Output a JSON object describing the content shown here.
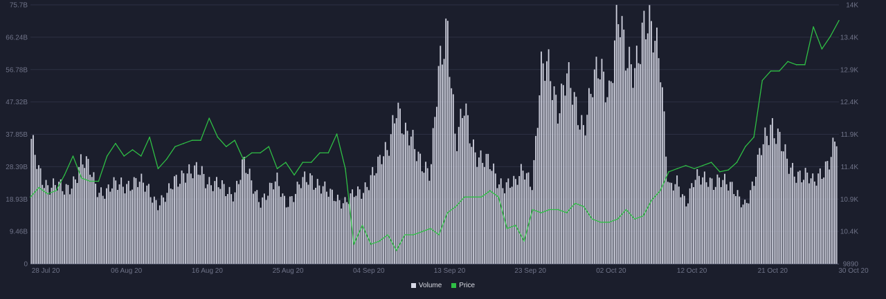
{
  "chart_data": {
    "type": "bar+line",
    "title": "",
    "x_ticks": [
      "28 Jul 20",
      "06 Aug 20",
      "16 Aug 20",
      "25 Aug 20",
      "04 Sep 20",
      "13 Sep 20",
      "23 Sep 20",
      "02 Oct 20",
      "12 Oct 20",
      "21 Oct 20",
      "30 Oct 20"
    ],
    "x_start_date": "2020-07-27",
    "x_end_date": "2020-10-30",
    "y_left": {
      "ticks": [
        "0",
        "9.46B",
        "18.93B",
        "28.39B",
        "37.85B",
        "47.32B",
        "56.78B",
        "66.24B",
        "75.7B"
      ],
      "min": 0,
      "max": 75.7,
      "unit": "B"
    },
    "y_right": {
      "ticks": [
        "9890",
        "10.4K",
        "10.9K",
        "11.4K",
        "11.9K",
        "12.4K",
        "12.9K",
        "13.4K",
        "14K"
      ],
      "min": 9890,
      "max": 14000
    },
    "series": [
      {
        "name": "Volume",
        "kind": "bar",
        "color": "#d7d9e6",
        "axis": "left",
        "points": [
          [
            "2020-07-27",
            35.5
          ],
          [
            "2020-07-28",
            27.0
          ],
          [
            "2020-07-29",
            23.5
          ],
          [
            "2020-07-30",
            22.5
          ],
          [
            "2020-07-31",
            21.0
          ],
          [
            "2020-08-01",
            24.5
          ],
          [
            "2020-08-02",
            29.5
          ],
          [
            "2020-08-03",
            27.0
          ],
          [
            "2020-08-04",
            22.0
          ],
          [
            "2020-08-05",
            21.0
          ],
          [
            "2020-08-06",
            22.5
          ],
          [
            "2020-08-07",
            24.0
          ],
          [
            "2020-08-08",
            23.5
          ],
          [
            "2020-08-09",
            23.0
          ],
          [
            "2020-08-10",
            22.0
          ],
          [
            "2020-08-11",
            17.5
          ],
          [
            "2020-08-12",
            19.0
          ],
          [
            "2020-08-13",
            25.0
          ],
          [
            "2020-08-14",
            27.0
          ],
          [
            "2020-08-15",
            25.5
          ],
          [
            "2020-08-16",
            27.5
          ],
          [
            "2020-08-17",
            24.5
          ],
          [
            "2020-08-18",
            22.5
          ],
          [
            "2020-08-19",
            21.0
          ],
          [
            "2020-08-20",
            21.5
          ],
          [
            "2020-08-21",
            29.0
          ],
          [
            "2020-08-22",
            23.0
          ],
          [
            "2020-08-23",
            19.0
          ],
          [
            "2020-08-24",
            21.0
          ],
          [
            "2020-08-25",
            23.5
          ],
          [
            "2020-08-26",
            18.5
          ],
          [
            "2020-08-27",
            20.0
          ],
          [
            "2020-08-28",
            23.5
          ],
          [
            "2020-08-29",
            26.0
          ],
          [
            "2020-08-30",
            23.0
          ],
          [
            "2020-08-31",
            20.0
          ],
          [
            "2020-09-01",
            19.5
          ],
          [
            "2020-09-02",
            18.5
          ],
          [
            "2020-09-03",
            19.5
          ],
          [
            "2020-09-04",
            21.0
          ],
          [
            "2020-09-05",
            26.5
          ],
          [
            "2020-09-06",
            28.5
          ],
          [
            "2020-09-07",
            33.0
          ],
          [
            "2020-09-08",
            49.0
          ],
          [
            "2020-09-09",
            36.5
          ],
          [
            "2020-09-10",
            35.0
          ],
          [
            "2020-09-11",
            31.0
          ],
          [
            "2020-09-12",
            25.5
          ],
          [
            "2020-09-13",
            55.0
          ],
          [
            "2020-09-14",
            73.5
          ],
          [
            "2020-09-15",
            34.0
          ],
          [
            "2020-09-16",
            44.5
          ],
          [
            "2020-09-17",
            35.5
          ],
          [
            "2020-09-18",
            30.5
          ],
          [
            "2020-09-19",
            28.0
          ],
          [
            "2020-09-20",
            24.5
          ],
          [
            "2020-09-21",
            23.5
          ],
          [
            "2020-09-22",
            22.5
          ],
          [
            "2020-09-23",
            28.5
          ],
          [
            "2020-09-24",
            24.0
          ],
          [
            "2020-09-25",
            54.0
          ],
          [
            "2020-09-26",
            58.0
          ],
          [
            "2020-09-27",
            46.5
          ],
          [
            "2020-09-28",
            53.0
          ],
          [
            "2020-09-29",
            46.5
          ],
          [
            "2020-09-30",
            41.5
          ],
          [
            "2020-10-01",
            50.5
          ],
          [
            "2020-10-02",
            56.0
          ],
          [
            "2020-10-03",
            52.0
          ],
          [
            "2020-10-04",
            72.0
          ],
          [
            "2020-10-05",
            57.5
          ],
          [
            "2020-10-06",
            60.0
          ],
          [
            "2020-10-07",
            68.5
          ],
          [
            "2020-10-08",
            65.5
          ],
          [
            "2020-10-09",
            63.0
          ],
          [
            "2020-10-10",
            22.0
          ],
          [
            "2020-10-11",
            22.5
          ],
          [
            "2020-10-12",
            18.0
          ],
          [
            "2020-10-13",
            26.0
          ],
          [
            "2020-10-14",
            23.5
          ],
          [
            "2020-10-15",
            24.0
          ],
          [
            "2020-10-16",
            26.0
          ],
          [
            "2020-10-17",
            22.0
          ],
          [
            "2020-10-18",
            20.5
          ],
          [
            "2020-10-19",
            18.0
          ],
          [
            "2020-10-20",
            22.5
          ],
          [
            "2020-10-21",
            35.0
          ],
          [
            "2020-10-22",
            42.5
          ],
          [
            "2020-10-23",
            35.5
          ],
          [
            "2020-10-24",
            28.5
          ],
          [
            "2020-10-25",
            27.5
          ],
          [
            "2020-10-26",
            25.5
          ],
          [
            "2020-10-27",
            23.0
          ],
          [
            "2020-10-28",
            28.0
          ],
          [
            "2020-10-29",
            31.0
          ],
          [
            "2020-10-30",
            37.0
          ]
        ]
      },
      {
        "name": "Price",
        "kind": "line",
        "color": "#2fbf45",
        "axis": "right",
        "points": [
          [
            "2020-07-27",
            10.95
          ],
          [
            "2020-07-28",
            11.1
          ],
          [
            "2020-07-29",
            11.0
          ],
          [
            "2020-07-30",
            11.05
          ],
          [
            "2020-07-31",
            11.3
          ],
          [
            "2020-08-01",
            11.6
          ],
          [
            "2020-08-02",
            11.25
          ],
          [
            "2020-08-03",
            11.2
          ],
          [
            "2020-08-04",
            11.2
          ],
          [
            "2020-08-05",
            11.6
          ],
          [
            "2020-08-06",
            11.8
          ],
          [
            "2020-08-07",
            11.6
          ],
          [
            "2020-08-08",
            11.7
          ],
          [
            "2020-08-09",
            11.6
          ],
          [
            "2020-08-10",
            11.9
          ],
          [
            "2020-08-11",
            11.4
          ],
          [
            "2020-08-12",
            11.55
          ],
          [
            "2020-08-13",
            11.75
          ],
          [
            "2020-08-14",
            11.8
          ],
          [
            "2020-08-15",
            11.85
          ],
          [
            "2020-08-16",
            11.85
          ],
          [
            "2020-08-17",
            12.2
          ],
          [
            "2020-08-18",
            11.9
          ],
          [
            "2020-08-19",
            11.75
          ],
          [
            "2020-08-20",
            11.85
          ],
          [
            "2020-08-21",
            11.55
          ],
          [
            "2020-08-22",
            11.65
          ],
          [
            "2020-08-23",
            11.65
          ],
          [
            "2020-08-24",
            11.75
          ],
          [
            "2020-08-25",
            11.4
          ],
          [
            "2020-08-26",
            11.5
          ],
          [
            "2020-08-27",
            11.3
          ],
          [
            "2020-08-28",
            11.5
          ],
          [
            "2020-08-29",
            11.5
          ],
          [
            "2020-08-30",
            11.65
          ],
          [
            "2020-08-31",
            11.65
          ],
          [
            "2020-09-01",
            11.95
          ],
          [
            "2020-09-02",
            11.4
          ],
          [
            "2020-09-03",
            10.2
          ],
          [
            "2020-09-04",
            10.5
          ],
          [
            "2020-09-05",
            10.2
          ],
          [
            "2020-09-06",
            10.25
          ],
          [
            "2020-09-07",
            10.35
          ],
          [
            "2020-09-08",
            10.1
          ],
          [
            "2020-09-09",
            10.35
          ],
          [
            "2020-09-10",
            10.35
          ],
          [
            "2020-09-11",
            10.4
          ],
          [
            "2020-09-12",
            10.45
          ],
          [
            "2020-09-13",
            10.35
          ],
          [
            "2020-09-14",
            10.7
          ],
          [
            "2020-09-15",
            10.8
          ],
          [
            "2020-09-16",
            10.95
          ],
          [
            "2020-09-17",
            10.95
          ],
          [
            "2020-09-18",
            10.95
          ],
          [
            "2020-09-19",
            11.05
          ],
          [
            "2020-09-20",
            10.95
          ],
          [
            "2020-09-21",
            10.45
          ],
          [
            "2020-09-22",
            10.5
          ],
          [
            "2020-09-23",
            10.25
          ],
          [
            "2020-09-24",
            10.75
          ],
          [
            "2020-09-25",
            10.7
          ],
          [
            "2020-09-26",
            10.75
          ],
          [
            "2020-09-27",
            10.75
          ],
          [
            "2020-09-28",
            10.7
          ],
          [
            "2020-09-29",
            10.85
          ],
          [
            "2020-09-30",
            10.8
          ],
          [
            "2020-10-01",
            10.6
          ],
          [
            "2020-10-02",
            10.55
          ],
          [
            "2020-10-03",
            10.55
          ],
          [
            "2020-10-04",
            10.6
          ],
          [
            "2020-10-05",
            10.75
          ],
          [
            "2020-10-06",
            10.6
          ],
          [
            "2020-10-07",
            10.65
          ],
          [
            "2020-10-08",
            10.9
          ],
          [
            "2020-10-09",
            11.05
          ],
          [
            "2020-10-10",
            11.35
          ],
          [
            "2020-10-11",
            11.4
          ],
          [
            "2020-10-12",
            11.45
          ],
          [
            "2020-10-13",
            11.4
          ],
          [
            "2020-10-14",
            11.45
          ],
          [
            "2020-10-15",
            11.5
          ],
          [
            "2020-10-16",
            11.35
          ],
          [
            "2020-10-17",
            11.38
          ],
          [
            "2020-10-18",
            11.5
          ],
          [
            "2020-10-19",
            11.75
          ],
          [
            "2020-10-20",
            11.9
          ],
          [
            "2020-10-21",
            12.8
          ],
          [
            "2020-10-22",
            12.95
          ],
          [
            "2020-10-23",
            12.95
          ],
          [
            "2020-10-24",
            13.1
          ],
          [
            "2020-10-25",
            13.05
          ],
          [
            "2020-10-26",
            13.05
          ],
          [
            "2020-10-27",
            13.65
          ],
          [
            "2020-10-28",
            13.3
          ],
          [
            "2020-10-29",
            13.5
          ],
          [
            "2020-10-30",
            13.75
          ]
        ]
      }
    ],
    "grid": true,
    "legend_position": "bottom-center"
  },
  "legend": {
    "items": [
      {
        "label": "Volume",
        "color": "#d7d9e6"
      },
      {
        "label": "Price",
        "color": "#2fbf45"
      }
    ]
  }
}
